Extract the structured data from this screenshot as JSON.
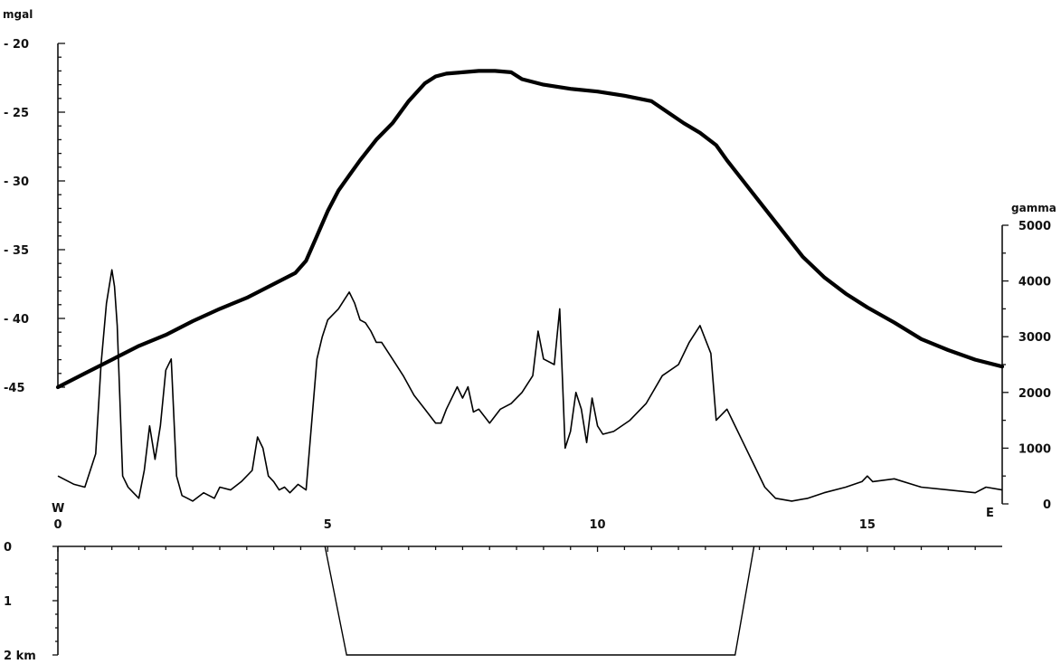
{
  "chart_data": [
    {
      "type": "line",
      "y_unit_label": "mgal",
      "y_axis_side": "left",
      "ylim": [
        -45,
        -20
      ],
      "y_ticks": [
        {
          "value": -20,
          "label": "- 20"
        },
        {
          "value": -25,
          "label": "- 25"
        },
        {
          "value": -30,
          "label": "- 30"
        },
        {
          "value": -35,
          "label": "- 35"
        },
        {
          "value": -40,
          "label": "- 40"
        },
        {
          "value": -45,
          "label": "-45"
        }
      ],
      "xlim": [
        0,
        17.5
      ],
      "x_ticks": [
        {
          "value": 0,
          "label": "0"
        },
        {
          "value": 5,
          "label": "5"
        },
        {
          "value": 10,
          "label": "10"
        },
        {
          "value": 15,
          "label": "15"
        }
      ],
      "x_end_labels": {
        "left": "W",
        "right": "E"
      },
      "series": [
        {
          "line_weight": "thick",
          "x": [
            0,
            0.5,
            1,
            1.5,
            2,
            2.5,
            3,
            3.5,
            4,
            4.4,
            4.6,
            4.8,
            5,
            5.2,
            5.4,
            5.6,
            5.9,
            6.2,
            6.5,
            6.8,
            7,
            7.2,
            7.5,
            7.8,
            8.1,
            8.4,
            8.6,
            9,
            9.5,
            10,
            10.5,
            11,
            11.3,
            11.6,
            11.9,
            12.2,
            12.4,
            12.7,
            13,
            13.4,
            13.8,
            14.2,
            14.6,
            15,
            15.5,
            16,
            16.5,
            17,
            17.5
          ],
          "y": [
            -45,
            -44,
            -43,
            -42,
            -41.2,
            -40.2,
            -39.3,
            -38.5,
            -37.5,
            -36.7,
            -35.8,
            -34,
            -32.2,
            -30.7,
            -29.6,
            -28.5,
            -27,
            -25.8,
            -24.2,
            -22.9,
            -22.4,
            -22.2,
            -22.1,
            -22,
            -22,
            -22.1,
            -22.6,
            -23,
            -23.3,
            -23.5,
            -23.8,
            -24.2,
            -25,
            -25.8,
            -26.5,
            -27.4,
            -28.5,
            -30,
            -31.5,
            -33.5,
            -35.5,
            -37,
            -38.2,
            -39.2,
            -40.3,
            -41.5,
            -42.3,
            -43,
            -43.5
          ]
        }
      ]
    },
    {
      "type": "line",
      "y_unit_label": "gamma",
      "y_axis_side": "right",
      "ylim": [
        0,
        5000
      ],
      "y_ticks": [
        {
          "value": 0,
          "label": "0"
        },
        {
          "value": 1000,
          "label": "1000"
        },
        {
          "value": 2000,
          "label": "2000"
        },
        {
          "value": 3000,
          "label": "3000"
        },
        {
          "value": 4000,
          "label": "4000"
        },
        {
          "value": 5000,
          "label": "5000"
        }
      ],
      "series": [
        {
          "line_weight": "thin",
          "x": [
            0,
            0.3,
            0.5,
            0.7,
            0.8,
            0.9,
            1.0,
            1.05,
            1.1,
            1.2,
            1.3,
            1.4,
            1.5,
            1.6,
            1.7,
            1.8,
            1.9,
            2.0,
            2.1,
            2.2,
            2.3,
            2.4,
            2.5,
            2.7,
            2.9,
            3.0,
            3.2,
            3.4,
            3.6,
            3.7,
            3.8,
            3.9,
            4.0,
            4.1,
            4.2,
            4.3,
            4.45,
            4.6,
            4.8,
            4.9,
            5.0,
            5.2,
            5.4,
            5.5,
            5.6,
            5.7,
            5.8,
            5.9,
            6.0,
            6.2,
            6.4,
            6.6,
            6.8,
            7.0,
            7.1,
            7.2,
            7.4,
            7.5,
            7.6,
            7.7,
            7.8,
            8.0,
            8.2,
            8.4,
            8.6,
            8.8,
            8.9,
            9.0,
            9.2,
            9.3,
            9.4,
            9.5,
            9.6,
            9.7,
            9.8,
            9.9,
            10.0,
            10.1,
            10.3,
            10.6,
            10.9,
            11.2,
            11.5,
            11.7,
            11.9,
            12.1,
            12.2,
            12.4,
            12.5,
            12.7,
            12.9,
            13.1,
            13.3,
            13.6,
            13.9,
            14.2,
            14.6,
            14.9,
            15.0,
            15.1,
            15.5,
            16.0,
            16.5,
            17.0,
            17.2,
            17.5
          ],
          "y": [
            500,
            350,
            300,
            900,
            2500,
            3600,
            4200,
            3900,
            3200,
            500,
            300,
            200,
            100,
            600,
            1400,
            800,
            1400,
            2400,
            2600,
            500,
            150,
            100,
            50,
            200,
            100,
            300,
            250,
            400,
            600,
            1200,
            1000,
            500,
            400,
            250,
            300,
            200,
            350,
            250,
            2600,
            3000,
            3300,
            3500,
            3800,
            3600,
            3300,
            3250,
            3100,
            2900,
            2900,
            2600,
            2300,
            1950,
            1700,
            1450,
            1450,
            1700,
            2100,
            1900,
            2100,
            1650,
            1700,
            1450,
            1700,
            1800,
            2000,
            2300,
            3100,
            2600,
            2500,
            3500,
            1000,
            1300,
            2000,
            1700,
            1100,
            1900,
            1400,
            1250,
            1300,
            1500,
            1800,
            2300,
            2500,
            2900,
            3200,
            2700,
            1500,
            1700,
            1500,
            1100,
            700,
            300,
            100,
            50,
            100,
            200,
            300,
            400,
            500,
            400,
            450,
            300,
            250,
            200,
            300,
            250
          ]
        }
      ]
    },
    {
      "type": "line",
      "y_unit_label": "km",
      "ylim": [
        2,
        0
      ],
      "y_ticks": [
        {
          "value": 0,
          "label": "0"
        },
        {
          "value": 1,
          "label": "1"
        },
        {
          "value": 2,
          "label": "2 km"
        }
      ],
      "series": [
        {
          "line_weight": "thin",
          "x": [
            4.95,
            5.35,
            12.55,
            12.9
          ],
          "y": [
            0,
            2,
            2,
            0
          ]
        }
      ]
    }
  ]
}
